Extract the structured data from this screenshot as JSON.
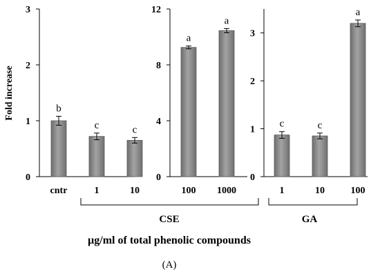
{
  "chart_data": {
    "type": "bar",
    "ylabel": "Fold increase",
    "xlabel": "µg/ml of total phenolic compounds",
    "panel_label": "(A)",
    "bar_color": "#8c8c8c",
    "panels": [
      {
        "ylim": [
          0,
          3
        ],
        "yticks": [
          "0",
          "1",
          "2",
          "3"
        ],
        "categories": [
          "cntr",
          "1",
          "10"
        ],
        "values": [
          1.0,
          0.72,
          0.65
        ],
        "errors": [
          0.08,
          0.06,
          0.05
        ],
        "letters": [
          "b",
          "c",
          "c"
        ]
      },
      {
        "ylim": [
          0,
          12
        ],
        "yticks": [
          "0",
          "4",
          "8",
          "12"
        ],
        "categories": [
          "100",
          "1000"
        ],
        "values": [
          9.25,
          10.45
        ],
        "errors": [
          0.1,
          0.15
        ],
        "letters": [
          "a",
          "a"
        ]
      },
      {
        "ylim": [
          0,
          3.5
        ],
        "yticks": [
          "0",
          "1",
          "2",
          "3"
        ],
        "categories": [
          "1",
          "10",
          "100"
        ],
        "values": [
          0.87,
          0.85,
          3.2
        ],
        "errors": [
          0.07,
          0.06,
          0.07
        ],
        "letters": [
          "c",
          "c",
          "a"
        ]
      }
    ],
    "groups": [
      "CSE",
      "GA"
    ]
  }
}
